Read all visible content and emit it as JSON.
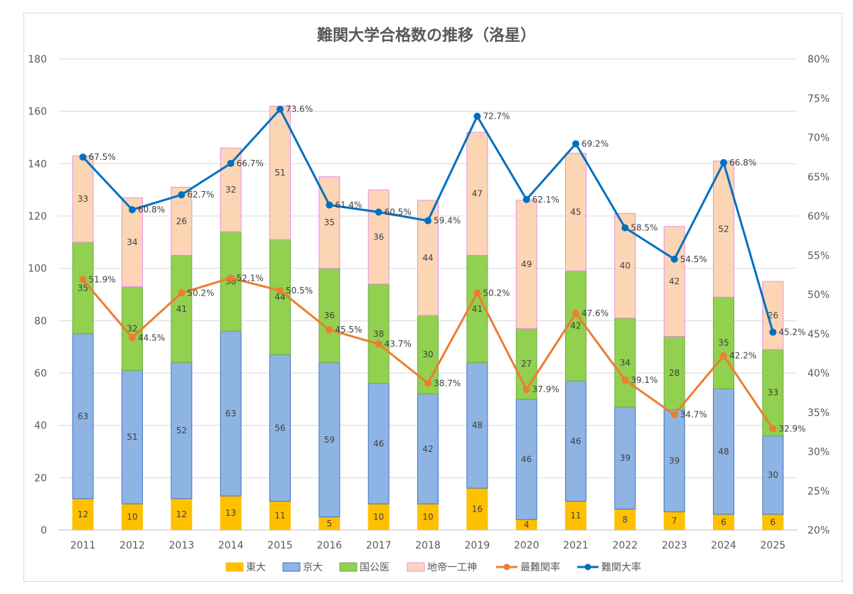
{
  "chart_data": {
    "type": "bar",
    "stacked": true,
    "title": "難関大学合格数の推移（洛星）",
    "categories": [
      "2011",
      "2012",
      "2013",
      "2014",
      "2015",
      "2016",
      "2017",
      "2018",
      "2019",
      "2020",
      "2021",
      "2022",
      "2023",
      "2024",
      "2025"
    ],
    "y_left": {
      "min": 0,
      "max": 180,
      "step": 20
    },
    "y_right": {
      "min": 0.2,
      "max": 0.8,
      "step": 0.05
    },
    "y_left_ticks": [
      "0",
      "20",
      "40",
      "60",
      "80",
      "100",
      "120",
      "140",
      "160",
      "180"
    ],
    "y_right_ticks": [
      "20%",
      "25%",
      "30%",
      "35%",
      "40%",
      "45%",
      "50%",
      "55%",
      "60%",
      "65%",
      "70%",
      "75%",
      "80%"
    ],
    "grid": "horizontal",
    "legend_position": "bottom",
    "series": [
      {
        "name": "東大",
        "kind": "bar",
        "axis": "left",
        "color": "#FFC000",
        "border": "#FFC000",
        "values": [
          12,
          10,
          12,
          13,
          11,
          5,
          10,
          10,
          16,
          4,
          11,
          8,
          7,
          6,
          6
        ]
      },
      {
        "name": "京大",
        "kind": "bar",
        "axis": "left",
        "color": "#8EB4E3",
        "border": "#4472C4",
        "values": [
          63,
          51,
          52,
          63,
          56,
          59,
          46,
          42,
          48,
          46,
          46,
          39,
          39,
          48,
          30
        ]
      },
      {
        "name": "国公医",
        "kind": "bar",
        "axis": "left",
        "color": "#92D050",
        "border": "#70AD47",
        "values": [
          35,
          32,
          41,
          38,
          44,
          36,
          38,
          30,
          41,
          27,
          42,
          34,
          28,
          35,
          33
        ]
      },
      {
        "name": "地帝一工神",
        "kind": "bar",
        "axis": "left",
        "color": "#FCD5B5",
        "border": "#E88FE8",
        "values": [
          33,
          34,
          26,
          32,
          51,
          35,
          36,
          44,
          47,
          49,
          45,
          40,
          42,
          52,
          26
        ]
      },
      {
        "name": "最難関率",
        "kind": "line",
        "axis": "right",
        "color": "#ED7D31",
        "values": [
          0.519,
          0.445,
          0.502,
          0.521,
          0.505,
          0.455,
          0.437,
          0.387,
          0.502,
          0.379,
          0.476,
          0.391,
          0.347,
          0.422,
          0.329
        ],
        "labels": [
          "51.9%",
          "44.5%",
          "50.2%",
          "52.1%",
          "50.5%",
          "45.5%",
          "43.7%",
          "38.7%",
          "50.2%",
          "37.9%",
          "47.6%",
          "39.1%",
          "34.7%",
          "42.2%",
          "32.9%"
        ]
      },
      {
        "name": "難関大率",
        "kind": "line",
        "axis": "right",
        "color": "#0070C0",
        "values": [
          0.675,
          0.608,
          0.627,
          0.667,
          0.736,
          0.614,
          0.605,
          0.594,
          0.727,
          0.621,
          0.692,
          0.585,
          0.545,
          0.668,
          0.452
        ],
        "labels": [
          "67.5%",
          "60.8%",
          "62.7%",
          "66.7%",
          "73.6%",
          "61.4%",
          "60.5%",
          "59.4%",
          "72.7%",
          "62.1%",
          "69.2%",
          "58.5%",
          "54.5%",
          "66.8%",
          "45.2%"
        ]
      }
    ]
  }
}
